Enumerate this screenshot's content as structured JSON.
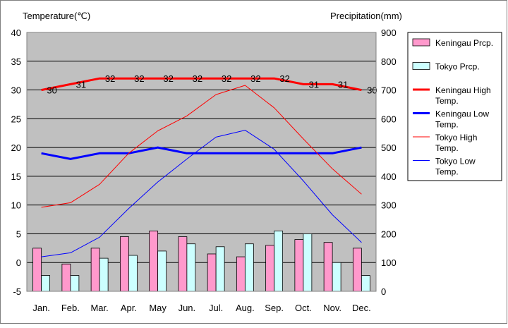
{
  "chart_data": {
    "type": "bar-line-combo",
    "left_axis_title": "Temperature(℃)",
    "right_axis_title": "Precipitation(mm)",
    "categories": [
      "Jan.",
      "Feb.",
      "Mar.",
      "Apr.",
      "May",
      "Jun.",
      "Jul.",
      "Aug.",
      "Sep.",
      "Oct.",
      "Nov.",
      "Dec."
    ],
    "left_axis": {
      "min": -5,
      "max": 40,
      "step": 5,
      "ticks": [
        "-5",
        "0",
        "5",
        "10",
        "15",
        "20",
        "25",
        "30",
        "35",
        "40"
      ]
    },
    "right_axis": {
      "min": 0,
      "max": 900,
      "step": 100,
      "ticks": [
        "0",
        "100",
        "200",
        "300",
        "400",
        "500",
        "600",
        "700",
        "800",
        "900"
      ]
    },
    "grid": true,
    "legend_position": "right",
    "bars": [
      {
        "name": "Keningau Prcp.",
        "color": "#ff99cc",
        "values": [
          150,
          95,
          150,
          190,
          210,
          190,
          130,
          120,
          160,
          180,
          170,
          150
        ]
      },
      {
        "name": "Tokyo Prcp.",
        "color": "#ccffff",
        "values": [
          55,
          55,
          115,
          125,
          140,
          165,
          155,
          165,
          210,
          200,
          100,
          55
        ]
      }
    ],
    "lines": [
      {
        "name": "Keningau High Temp.",
        "color": "#ff0000",
        "width": 3,
        "values": [
          30,
          31,
          32,
          32,
          32,
          32,
          32,
          32,
          32,
          31,
          31,
          30
        ],
        "labels": [
          "30",
          "31",
          "32",
          "32",
          "32",
          "32",
          "32",
          "32",
          "32",
          "31",
          "31",
          "30"
        ]
      },
      {
        "name": "Keningau Low Temp.",
        "color": "#0000ff",
        "width": 3,
        "values": [
          19,
          18,
          19,
          19,
          20,
          19,
          19,
          19,
          19,
          19,
          19,
          20
        ]
      },
      {
        "name": "Tokyo High Temp.",
        "color": "#ff0000",
        "width": 1,
        "values": [
          9.6,
          10.4,
          13.6,
          19,
          22.9,
          25.5,
          29.2,
          30.8,
          26.9,
          21.5,
          16.3,
          11.9
        ]
      },
      {
        "name": "Tokyo Low Temp.",
        "color": "#0000ff",
        "width": 1,
        "values": [
          1,
          1.7,
          4.4,
          9.4,
          14,
          18,
          21.8,
          23,
          19.7,
          14.2,
          8.3,
          3.5
        ]
      }
    ],
    "legend": {
      "items": [
        {
          "kind": "box",
          "color": "#ff99cc",
          "lines": [
            "Keningau Prcp."
          ]
        },
        {
          "kind": "box",
          "color": "#ccffff",
          "lines": [
            "Tokyo Prcp."
          ]
        },
        {
          "kind": "line",
          "color": "#ff0000",
          "width": 3,
          "lines": [
            "Keningau High",
            "Temp."
          ]
        },
        {
          "kind": "line",
          "color": "#0000ff",
          "width": 3,
          "lines": [
            "Keningau Low",
            "Temp."
          ]
        },
        {
          "kind": "line",
          "color": "#ff0000",
          "width": 1,
          "lines": [
            "Tokyo High",
            "Temp."
          ]
        },
        {
          "kind": "line",
          "color": "#0000ff",
          "width": 1,
          "lines": [
            "Tokyo Low",
            "Temp."
          ]
        }
      ]
    },
    "colors": {
      "plot_background": "#c0c0c0",
      "grid": "#000000",
      "frame": "#808080"
    }
  }
}
